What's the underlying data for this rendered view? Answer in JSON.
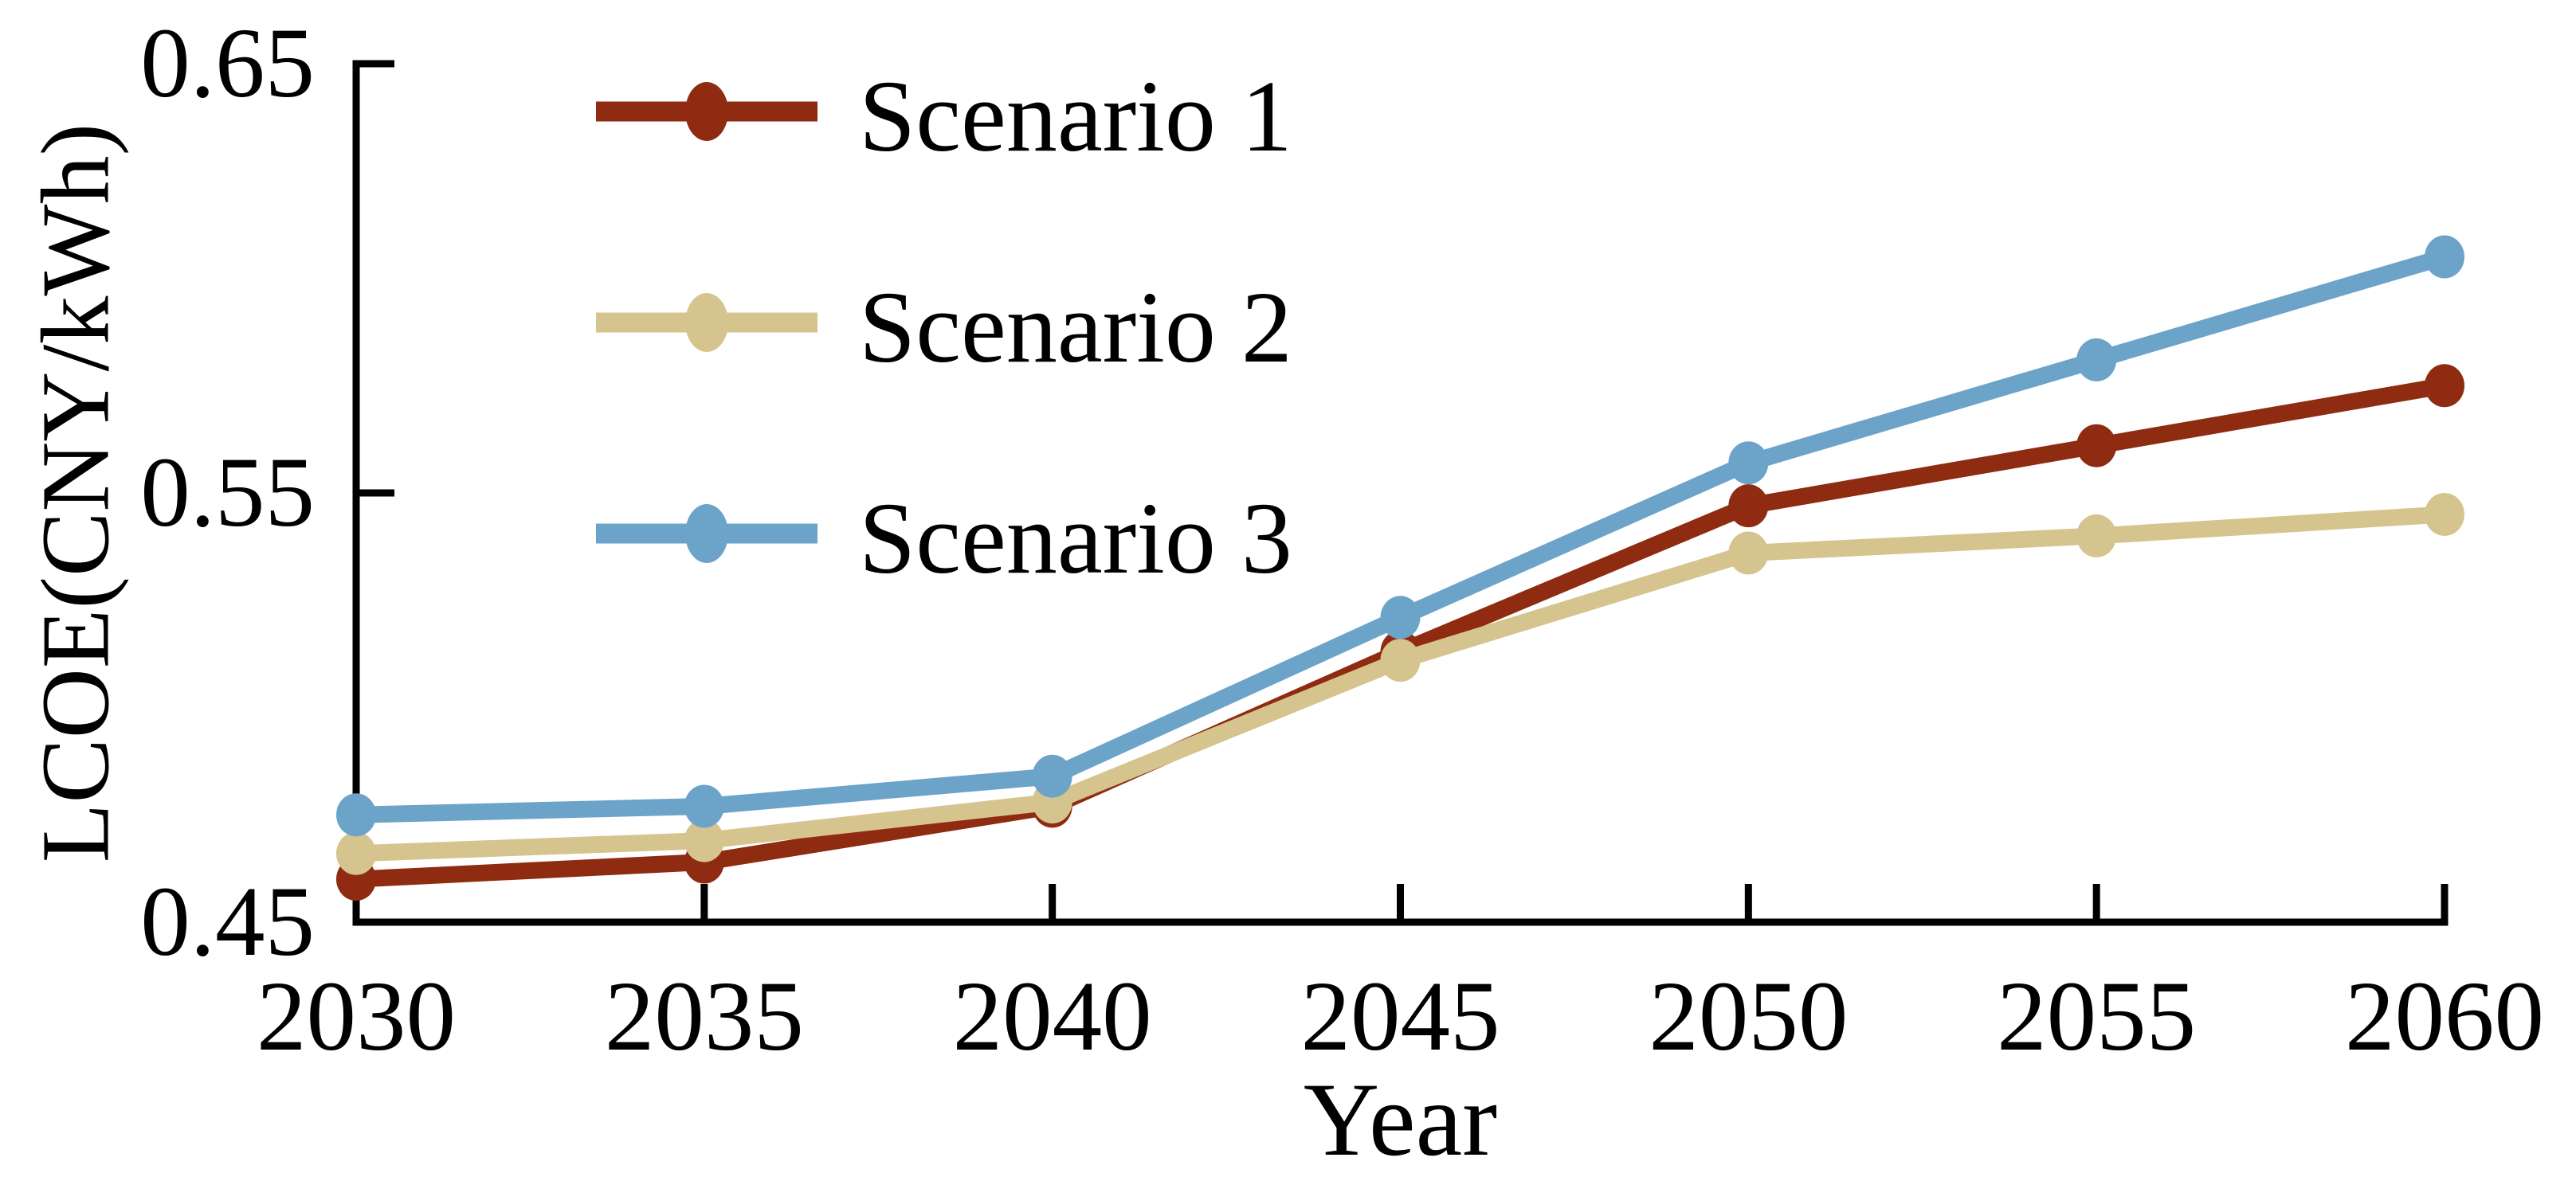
{
  "figure": {
    "background": "#ffffff",
    "axis_color": "#000000",
    "text_color": "#000000"
  },
  "chart_data": {
    "type": "line",
    "title": "",
    "xlabel": "Year",
    "ylabel": "LCOE(CNY/kWh)",
    "xlim": [
      2030,
      2060
    ],
    "ylim": [
      0.45,
      0.65
    ],
    "grid": false,
    "legend_position": "top-left-inside",
    "x": [
      2030,
      2035,
      2040,
      2045,
      2050,
      2055,
      2060
    ],
    "xtick_labels": [
      "2030",
      "2035",
      "2040",
      "2045",
      "2050",
      "2055",
      "2060"
    ],
    "ytick_values": [
      0.45,
      0.55,
      0.65
    ],
    "ytick_labels": [
      "0.45",
      "0.55",
      "0.65"
    ],
    "series": [
      {
        "name": "Scenario 1",
        "color": "#8E2B10",
        "marker": "circle",
        "values": [
          0.46,
          0.464,
          0.477,
          0.513,
          0.547,
          0.561,
          0.575
        ]
      },
      {
        "name": "Scenario 2",
        "color": "#D6C48E",
        "marker": "circle",
        "values": [
          0.466,
          0.469,
          0.478,
          0.511,
          0.536,
          0.54,
          0.545
        ]
      },
      {
        "name": "Scenario 3",
        "color": "#6CA3C9",
        "marker": "circle",
        "values": [
          0.475,
          0.477,
          0.484,
          0.521,
          0.557,
          0.581,
          0.605
        ]
      }
    ]
  }
}
